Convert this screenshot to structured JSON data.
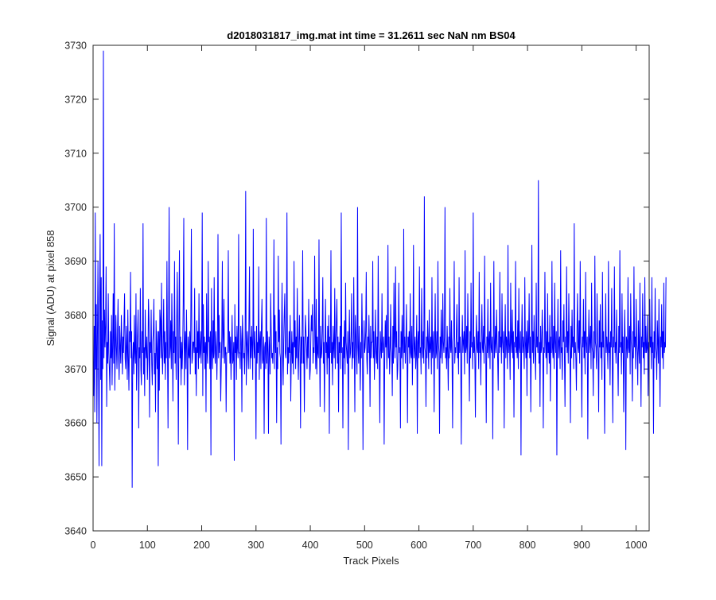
{
  "chart_data": {
    "type": "line",
    "title": "d2018031817_img.mat int time = 31.2611 sec  NaN nm BS04",
    "xlabel": "Track Pixels",
    "ylabel": "Signal (ADU) at pixel 858",
    "xlim": [
      0,
      1024
    ],
    "ylim": [
      3640,
      3730
    ],
    "xticks": [
      0,
      100,
      200,
      300,
      400,
      500,
      600,
      700,
      800,
      900,
      1000
    ],
    "yticks": [
      3640,
      3650,
      3660,
      3670,
      3680,
      3690,
      3700,
      3710,
      3720,
      3730
    ],
    "grid": false,
    "line_color": "#0000ff",
    "series": [
      {
        "x_start": 1,
        "x_step": 1,
        "values": [
          3665,
          3678,
          3662,
          3699,
          3670,
          3682,
          3660,
          3676,
          3690,
          3671,
          3652,
          3683,
          3695,
          3668,
          3687,
          3652,
          3679,
          3670,
          3729,
          3672,
          3681,
          3674,
          3678,
          3689,
          3663,
          3675,
          3671,
          3684,
          3673,
          3670,
          3666,
          3677,
          3672,
          3680,
          3667,
          3674,
          3684,
          3671,
          3697,
          3666,
          3673,
          3680,
          3674,
          3670,
          3677,
          3683,
          3672,
          3668,
          3678,
          3674,
          3671,
          3680,
          3675,
          3669,
          3676,
          3673,
          3679,
          3684,
          3672,
          3670,
          3678,
          3674,
          3668,
          3681,
          3672,
          3666,
          3677,
          3675,
          3688,
          3672,
          3677,
          3648,
          3672,
          3675,
          3669,
          3680,
          3673,
          3671,
          3684,
          3666,
          3673,
          3677,
          3681,
          3659,
          3674,
          3672,
          3685,
          3670,
          3667,
          3677,
          3673,
          3697,
          3669,
          3674,
          3665,
          3681,
          3674,
          3672,
          3676,
          3668,
          3672,
          3683,
          3679,
          3661,
          3675,
          3673,
          3681,
          3671,
          3667,
          3675,
          3677,
          3683,
          3669,
          3673,
          3662,
          3679,
          3674,
          3670,
          3677,
          3652,
          3677,
          3666,
          3681,
          3679,
          3672,
          3686,
          3673,
          3669,
          3675,
          3683,
          3671,
          3677,
          3668,
          3675,
          3672,
          3690,
          3674,
          3659,
          3677,
          3700,
          3672,
          3674,
          3679,
          3670,
          3684,
          3676,
          3664,
          3677,
          3673,
          3690,
          3671,
          3676,
          3668,
          3679,
          3688,
          3673,
          3656,
          3677,
          3692,
          3672,
          3676,
          3667,
          3675,
          3670,
          3674,
          3682,
          3698,
          3667,
          3674,
          3677,
          3670,
          3681,
          3673,
          3655,
          3676,
          3673,
          3672,
          3677,
          3669,
          3680,
          3696,
          3671,
          3672,
          3675,
          3675,
          3673,
          3685,
          3669,
          3674,
          3665,
          3679,
          3673,
          3677,
          3670,
          3684,
          3672,
          3673,
          3677,
          3671,
          3676,
          3699,
          3665,
          3682,
          3673,
          3676,
          3670,
          3675,
          3662,
          3684,
          3673,
          3671,
          3690,
          3675,
          3676,
          3670,
          3677,
          3654,
          3685,
          3674,
          3670,
          3679,
          3672,
          3687,
          3673,
          3671,
          3677,
          3674,
          3668,
          3675,
          3695,
          3672,
          3680,
          3673,
          3675,
          3664,
          3670,
          3676,
          3690,
          3672,
          3676,
          3683,
          3671,
          3674,
          3674,
          3662,
          3673,
          3673,
          3675,
          3692,
          3673,
          3677,
          3671,
          3676,
          3668,
          3674,
          3680,
          3671,
          3672,
          3675,
          3653,
          3682,
          3673,
          3676,
          3668,
          3678,
          3674,
          3672,
          3695,
          3673,
          3673,
          3670,
          3678,
          3675,
          3662,
          3680,
          3676,
          3672,
          3673,
          3669,
          3676,
          3703,
          3667,
          3674,
          3677,
          3673,
          3670,
          3679,
          3689,
          3670,
          3676,
          3672,
          3678,
          3674,
          3668,
          3696,
          3675,
          3672,
          3677,
          3671,
          3657,
          3678,
          3671,
          3675,
          3673,
          3689,
          3668,
          3675,
          3677,
          3670,
          3678,
          3683,
          3671,
          3672,
          3676,
          3658,
          3674,
          3675,
          3670,
          3698,
          3671,
          3677,
          3673,
          3658,
          3676,
          3674,
          3669,
          3684,
          3677,
          3672,
          3673,
          3671,
          3675,
          3694,
          3670,
          3680,
          3673,
          3677,
          3660,
          3674,
          3670,
          3691,
          3675,
          3681,
          3673,
          3672,
          3656,
          3676,
          3686,
          3673,
          3667,
          3675,
          3680,
          3684,
          3673,
          3672,
          3675,
          3699,
          3669,
          3674,
          3671,
          3677,
          3673,
          3680,
          3664,
          3672,
          3677,
          3671,
          3675,
          3669,
          3690,
          3674,
          3679,
          3670,
          3676,
          3672,
          3685,
          3673,
          3668,
          3675,
          3680,
          3673,
          3659,
          3676,
          3671,
          3678,
          3692,
          3671,
          3676,
          3662,
          3673,
          3680,
          3677,
          3674,
          3670,
          3676,
          3672,
          3683,
          3675,
          3668,
          3670,
          3676,
          3680,
          3677,
          3682,
          3671,
          3674,
          3673,
          3691,
          3676,
          3670,
          3683,
          3669,
          3676,
          3673,
          3672,
          3694,
          3675,
          3663,
          3678,
          3672,
          3673,
          3677,
          3687,
          3671,
          3675,
          3662,
          3674,
          3683,
          3673,
          3675,
          3669,
          3678,
          3672,
          3680,
          3658,
          3676,
          3673,
          3692,
          3671,
          3675,
          3667,
          3678,
          3674,
          3672,
          3685,
          3670,
          3675,
          3679,
          3683,
          3671,
          3676,
          3662,
          3675,
          3673,
          3678,
          3670,
          3699,
          3673,
          3674,
          3659,
          3676,
          3672,
          3679,
          3669,
          3686,
          3675,
          3673,
          3671,
          3677,
          3655,
          3674,
          3681,
          3672,
          3673,
          3676,
          3684,
          3670,
          3675,
          3672,
          3687,
          3674,
          3662,
          3680,
          3677,
          3673,
          3669,
          3700,
          3674,
          3671,
          3678,
          3673,
          3666,
          3675,
          3672,
          3684,
          3676,
          3655,
          3672,
          3679,
          3673,
          3674,
          3677,
          3688,
          3672,
          3669,
          3676,
          3673,
          3680,
          3674,
          3663,
          3678,
          3672,
          3675,
          3675,
          3690,
          3672,
          3677,
          3668,
          3674,
          3681,
          3673,
          3671,
          3676,
          3670,
          3691,
          3675,
          3671,
          3660,
          3677,
          3674,
          3672,
          3684,
          3673,
          3674,
          3676,
          3656,
          3672,
          3679,
          3674,
          3680,
          3670,
          3675,
          3693,
          3672,
          3676,
          3669,
          3673,
          3682,
          3674,
          3673,
          3665,
          3678,
          3671,
          3686,
          3675,
          3672,
          3689,
          3674,
          3677,
          3668,
          3670,
          3675,
          3686,
          3673,
          3674,
          3659,
          3677,
          3672,
          3680,
          3674,
          3670,
          3696,
          3673,
          3676,
          3671,
          3675,
          3682,
          3673,
          3660,
          3676,
          3674,
          3677,
          3671,
          3684,
          3673,
          3672,
          3678,
          3667,
          3675,
          3693,
          3672,
          3674,
          3676,
          3670,
          3673,
          3680,
          3658,
          3675,
          3677,
          3672,
          3689,
          3673,
          3674,
          3669,
          3685,
          3675,
          3672,
          3677,
          3671,
          3702,
          3674,
          3673,
          3663,
          3676,
          3672,
          3679,
          3675,
          3670,
          3681,
          3673,
          3674,
          3676,
          3669,
          3687,
          3672,
          3674,
          3677,
          3662,
          3675,
          3684,
          3672,
          3673,
          3677,
          3670,
          3690,
          3675,
          3673,
          3658,
          3676,
          3672,
          3681,
          3674,
          3671,
          3684,
          3675,
          3673,
          3676,
          3700,
          3672,
          3674,
          3670,
          3678,
          3673,
          3666,
          3676,
          3672,
          3685,
          3674,
          3673,
          3679,
          3672,
          3659,
          3675,
          3676,
          3690,
          3671,
          3674,
          3673,
          3677,
          3682,
          3672,
          3675,
          3669,
          3687,
          3673,
          3676,
          3672,
          3656,
          3674,
          3680,
          3673,
          3675,
          3677,
          3669,
          3692,
          3673,
          3674,
          3678,
          3671,
          3684,
          3675,
          3673,
          3664,
          3677,
          3672,
          3686,
          3674,
          3675,
          3670,
          3699,
          3673,
          3676,
          3672,
          3661,
          3675,
          3680,
          3674,
          3673,
          3677,
          3670,
          3688,
          3673,
          3675,
          3667,
          3676,
          3682,
          3674,
          3673,
          3678,
          3671,
          3691,
          3675,
          3674,
          3660,
          3676,
          3673,
          3683,
          3672,
          3675,
          3677,
          3670,
          3686,
          3674,
          3673,
          3676,
          3657,
          3675,
          3690,
          3672,
          3674,
          3678,
          3673,
          3681,
          3675,
          3672,
          3666,
          3677,
          3673,
          3688,
          3674,
          3676,
          3671,
          3684,
          3675,
          3673,
          3677,
          3659,
          3674,
          3682,
          3672,
          3676,
          3675,
          3670,
          3693,
          3673,
          3677,
          3674,
          3668,
          3686,
          3675,
          3673,
          3681,
          3672,
          3677,
          3661,
          3675,
          3674,
          3690,
          3673,
          3676,
          3672,
          3679,
          3670,
          3685,
          3674,
          3673,
          3677,
          3654,
          3675,
          3682,
          3673,
          3676,
          3674,
          3670,
          3687,
          3675,
          3672,
          3677,
          3665,
          3679,
          3673,
          3675,
          3684,
          3672,
          3676,
          3662,
          3674,
          3693,
          3673,
          3677,
          3671,
          3680,
          3675,
          3672,
          3668,
          3686,
          3674,
          3676,
          3673,
          3705,
          3671,
          3675,
          3663,
          3678,
          3673,
          3674,
          3681,
          3676,
          3659,
          3674,
          3673,
          3688,
          3675,
          3672,
          3677,
          3669,
          3684,
          3673,
          3675,
          3671,
          3680,
          3664,
          3676,
          3673,
          3690,
          3674,
          3672,
          3678,
          3670,
          3686,
          3675,
          3673,
          3677,
          3654,
          3674,
          3683,
          3672,
          3675,
          3676,
          3670,
          3692,
          3673,
          3674,
          3668,
          3679,
          3675,
          3682,
          3672,
          3663,
          3676,
          3674,
          3689,
          3673,
          3677,
          3671,
          3684,
          3675,
          3673,
          3660,
          3678,
          3672,
          3681,
          3674,
          3676,
          3670,
          3697,
          3673,
          3675,
          3672,
          3666,
          3677,
          3684,
          3674,
          3673,
          3679,
          3671,
          3690,
          3675,
          3673,
          3661,
          3676,
          3674,
          3683,
          3672,
          3677,
          3669,
          3688,
          3675,
          3673,
          3676,
          3657,
          3674,
          3681,
          3673,
          3675,
          3678,
          3670,
          3686,
          3674,
          3673,
          3665,
          3677,
          3672,
          3691,
          3675,
          3674,
          3670,
          3684,
          3676,
          3673,
          3662,
          3679,
          3674,
          3682,
          3672,
          3675,
          3668,
          3688,
          3674,
          3677,
          3671,
          3658,
          3675,
          3684,
          3673,
          3676,
          3674,
          3670,
          3690,
          3673,
          3675,
          3667,
          3677,
          3674,
          3685,
          3672,
          3660,
          3676,
          3674,
          3689,
          3673,
          3675,
          3671,
          3681,
          3674,
          3672,
          3665,
          3678,
          3673,
          3692,
          3674,
          3675,
          3669,
          3684,
          3673,
          3676,
          3662,
          3674,
          3681,
          3673,
          3655,
          3676,
          3675,
          3672,
          3687,
          3674,
          3673,
          3678,
          3669,
          3684,
          3675,
          3673,
          3664,
          3677,
          3672,
          3689,
          3674,
          3676,
          3670,
          3683,
          3675,
          3673,
          3667,
          3679,
          3674,
          3671,
          3686,
          3673,
          3663,
          3676,
          3674,
          3684,
          3672,
          3675,
          3669,
          3687,
          3673,
          3678,
          3673,
          3674,
          3680,
          3665,
          3675,
          3672,
          3683,
          3674,
          3676,
          3670,
          3687,
          3673,
          3675,
          3658,
          3677,
          3672,
          3685,
          3674,
          3673,
          3668,
          3679,
          3675,
          3671,
          3683,
          3673,
          3663,
          3676,
          3674,
          3682,
          3672,
          3677,
          3670,
          3686,
          3673,
          3675,
          3674,
          3687
        ]
      }
    ]
  }
}
